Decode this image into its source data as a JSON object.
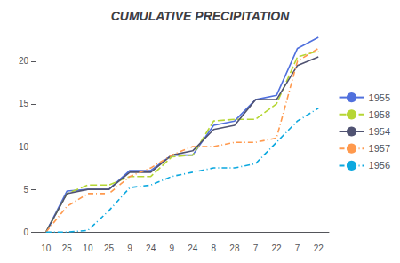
{
  "chart_data": {
    "type": "line",
    "title": "CUMULATIVE PRECIPITATION",
    "categories": [
      "10",
      "25",
      "10",
      "25",
      "9",
      "24",
      "9",
      "24",
      "8",
      "28",
      "7",
      "22",
      "7",
      "22"
    ],
    "series": [
      {
        "name": "1955",
        "line_style": "solid",
        "values": [
          0,
          4.8,
          5.0,
          5.0,
          7.2,
          7.2,
          9.0,
          9.0,
          12.5,
          13.0,
          15.5,
          16.0,
          21.5,
          22.8
        ]
      },
      {
        "name": "1958",
        "line_style": "dashed",
        "values": [
          0,
          4.5,
          5.5,
          5.5,
          6.5,
          6.5,
          8.8,
          9.0,
          13.0,
          13.2,
          13.2,
          15.0,
          20.5,
          21.2
        ]
      },
      {
        "name": "1954",
        "line_style": "solid",
        "values": [
          0,
          4.5,
          5.0,
          5.0,
          7.0,
          7.0,
          9.0,
          9.5,
          12.0,
          12.5,
          15.5,
          15.5,
          19.5,
          20.5
        ]
      },
      {
        "name": "1957",
        "line_style": "dashdot",
        "values": [
          0,
          3.0,
          4.5,
          4.5,
          6.5,
          7.5,
          9.0,
          10.0,
          10.0,
          10.5,
          10.5,
          11.0,
          20.0,
          21.5
        ]
      },
      {
        "name": "1956",
        "line_style": "dashdot",
        "values": [
          0,
          0.0,
          0.2,
          2.5,
          5.2,
          5.5,
          6.5,
          7.0,
          7.5,
          7.5,
          8.0,
          10.5,
          13.0,
          14.5
        ]
      }
    ],
    "ylim": [
      -0.5,
      23
    ],
    "yticks": [
      0,
      5,
      10,
      15,
      20
    ],
    "grid": false,
    "legend": "right"
  }
}
